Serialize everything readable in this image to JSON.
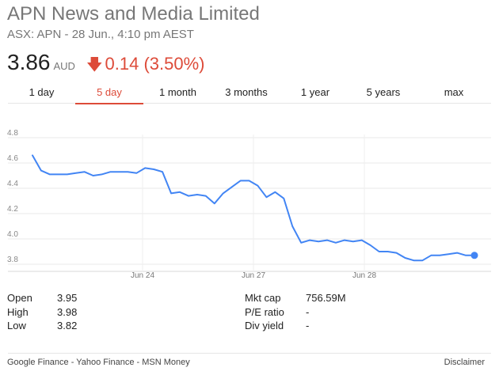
{
  "header": {
    "company": "APN News and Media Limited",
    "exchange_line": "ASX: APN - 28 Jun., 4:10 pm AEST"
  },
  "quote": {
    "price": "3.86",
    "currency": "AUD",
    "change_arrow_icon": "down-arrow-icon",
    "change": "0.14 (3.50%)",
    "change_color": "#dd4b39"
  },
  "tabs": [
    {
      "label": "1 day",
      "active": false
    },
    {
      "label": "5 day",
      "active": true
    },
    {
      "label": "1 month",
      "active": false
    },
    {
      "label": "3 months",
      "active": false
    },
    {
      "label": "1 year",
      "active": false
    },
    {
      "label": "5 years",
      "active": false
    },
    {
      "label": "max",
      "active": false
    }
  ],
  "chart_data": {
    "type": "line",
    "title": "",
    "xlabel": "",
    "ylabel": "",
    "ylim": [
      3.8,
      4.8
    ],
    "y_ticks": [
      "4.8",
      "4.6",
      "4.4",
      "4.2",
      "4.0",
      "3.8"
    ],
    "x_tick_labels": [
      "Jun 24",
      "Jun 27",
      "Jun 28"
    ],
    "grid": true,
    "line_color": "#4285f4",
    "series": [
      {
        "values": [
          4.66,
          4.54,
          4.51,
          4.51,
          4.51,
          4.52,
          4.53,
          4.5,
          4.51,
          4.53,
          4.53,
          4.53,
          4.52,
          4.56,
          4.55,
          4.53,
          4.36,
          4.37,
          4.34,
          4.35,
          4.34,
          4.28,
          4.36,
          4.41,
          4.46,
          4.46,
          4.42,
          4.33,
          4.37,
          4.32,
          4.1,
          3.97,
          3.99,
          3.98,
          3.99,
          3.97,
          3.99,
          3.98,
          3.99,
          3.95,
          3.9,
          3.9,
          3.89,
          3.85,
          3.83,
          3.83,
          3.87,
          3.87,
          3.88,
          3.89,
          3.87,
          3.87
        ]
      }
    ]
  },
  "stats": {
    "left": [
      {
        "label": "Open",
        "value": "3.95"
      },
      {
        "label": "High",
        "value": "3.98"
      },
      {
        "label": "Low",
        "value": "3.82"
      }
    ],
    "right": [
      {
        "label": "Mkt cap",
        "value": "756.59M"
      },
      {
        "label": "P/E ratio",
        "value": "-"
      },
      {
        "label": "Div yield",
        "value": "-"
      }
    ]
  },
  "footer": {
    "sources": [
      "Google Finance",
      "Yahoo Finance",
      "MSN Money"
    ],
    "separator": " - ",
    "disclaimer": "Disclaimer"
  }
}
